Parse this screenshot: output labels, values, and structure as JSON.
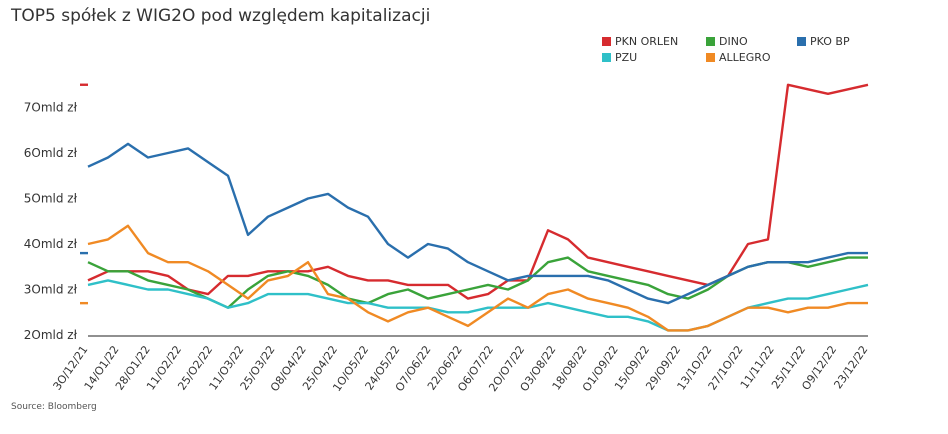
{
  "chart_data": {
    "type": "line",
    "title": "TOP5 spółek z WIG2O pod względem kapitalizacji",
    "source": "Source: Bloomberg",
    "ylim": [
      20,
      80
    ],
    "yticks": [
      {
        "value": 20,
        "label": "2Omld zł"
      },
      {
        "value": 30,
        "label": "3Omld zł"
      },
      {
        "value": 40,
        "label": "4Omld zł"
      },
      {
        "value": 50,
        "label": "5Omld zł"
      },
      {
        "value": 60,
        "label": "6Omld zł"
      },
      {
        "value": 70,
        "label": "7Omld zł"
      }
    ],
    "xticks": [
      "3O/12/21",
      "14/O1/22",
      "28/O1/22",
      "11/O2/22",
      "25/O2/22",
      "11/O3/22",
      "25/O3/22",
      "O8/O4/22",
      "25/O4/22",
      "1O/O5/22",
      "24/O5/22",
      "O7/O6/22",
      "22/O6/22",
      "O6/O7/22",
      "2O/O7/22",
      "O3/O8/22",
      "18/O8/22",
      "O1/O9/22",
      "15/O9/22",
      "29/O9/22",
      "13/1O/22",
      "27/1O/22",
      "11/11/22",
      "25/11/22",
      "O9/12/22",
      "23/12/22"
    ],
    "grid": false,
    "legend_position": "top-right",
    "series": [
      {
        "name": "PKN ORLEN",
        "color": "#d62b2f",
        "values": [
          32,
          34,
          34,
          34,
          33,
          30,
          29,
          33,
          33,
          34,
          34,
          34,
          35,
          33,
          32,
          32,
          31,
          31,
          31,
          28,
          29,
          32,
          32,
          43,
          41,
          37,
          36,
          35,
          34,
          33,
          32,
          31,
          33,
          40,
          41,
          75,
          74,
          73,
          74,
          75
        ]
      },
      {
        "name": "DINO",
        "color": "#3aa33a",
        "values": [
          36,
          34,
          34,
          32,
          31,
          30,
          28,
          26,
          30,
          33,
          34,
          33,
          31,
          28,
          27,
          29,
          30,
          28,
          29,
          30,
          31,
          30,
          32,
          36,
          37,
          34,
          33,
          32,
          31,
          29,
          28,
          30,
          33,
          35,
          36,
          36,
          35,
          36,
          37,
          37
        ]
      },
      {
        "name": "PKO BP",
        "color": "#2a6fad",
        "values": [
          57,
          59,
          62,
          59,
          60,
          61,
          58,
          55,
          42,
          46,
          48,
          50,
          51,
          48,
          46,
          40,
          37,
          40,
          39,
          36,
          34,
          32,
          33,
          33,
          33,
          33,
          32,
          30,
          28,
          27,
          29,
          31,
          33,
          35,
          36,
          36,
          36,
          37,
          38,
          38
        ]
      },
      {
        "name": "PZU",
        "color": "#2fc0c8",
        "values": [
          31,
          32,
          31,
          30,
          30,
          29,
          28,
          26,
          27,
          29,
          29,
          29,
          28,
          27,
          27,
          26,
          26,
          26,
          25,
          25,
          26,
          26,
          26,
          27,
          26,
          25,
          24,
          24,
          23,
          21,
          21,
          22,
          24,
          26,
          27,
          28,
          28,
          29,
          30,
          31
        ]
      },
      {
        "name": "ALLEGRO",
        "color": "#f08a24",
        "values": [
          40,
          41,
          44,
          38,
          36,
          36,
          34,
          31,
          28,
          32,
          33,
          36,
          29,
          28,
          25,
          23,
          25,
          26,
          24,
          22,
          25,
          28,
          26,
          29,
          30,
          28,
          27,
          26,
          24,
          21,
          21,
          22,
          24,
          26,
          26,
          25,
          26,
          26,
          27,
          27
        ]
      }
    ],
    "last_value_markers": {
      "PKN ORLEN": 75,
      "PKO BP": 38,
      "ALLEGRO": 27
    }
  }
}
